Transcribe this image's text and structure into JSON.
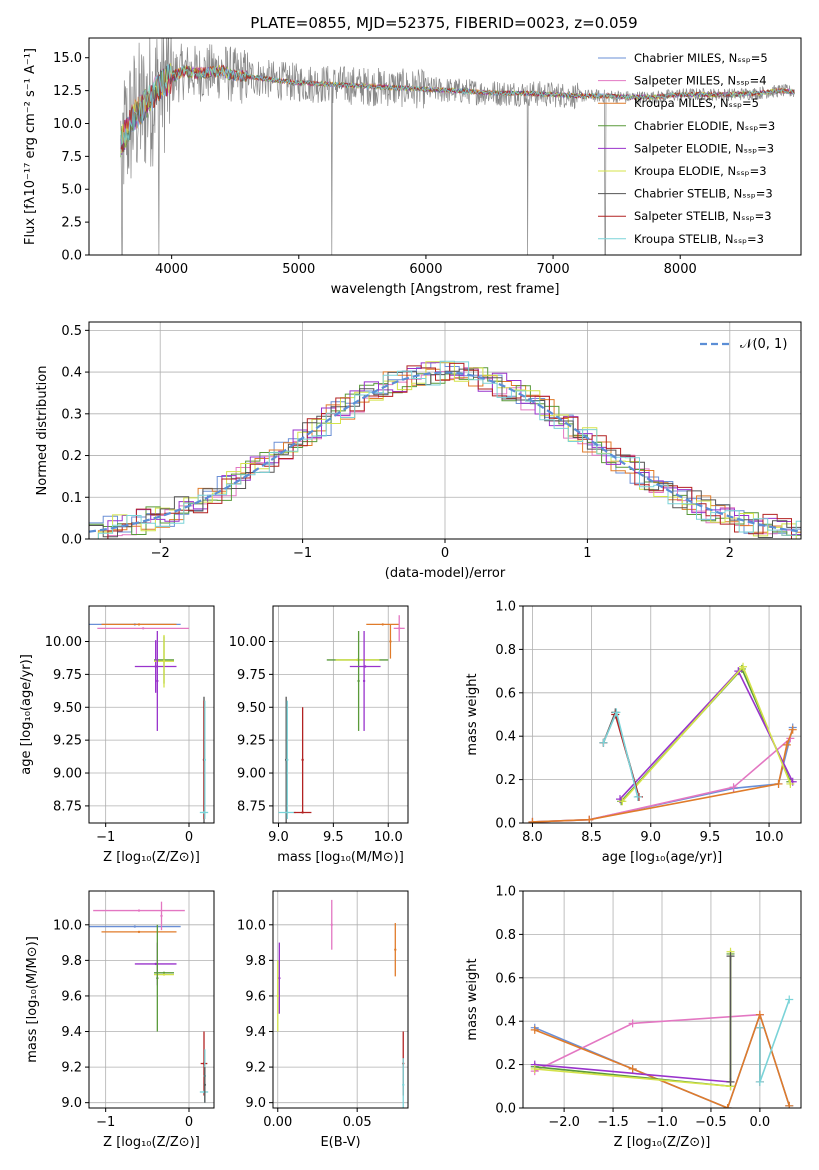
{
  "colors": {
    "chabrier_miles": "#6a8fd6",
    "salpeter_miles": "#e377c2",
    "kroupa_miles": "#e07b2a",
    "chabrier_elodie": "#5a9a3a",
    "salpeter_elodie": "#9933cc",
    "kroupa_elodie": "#d4e34a",
    "chabrier_stelib": "#555555",
    "salpeter_stelib": "#b22222",
    "kroupa_stelib": "#7ad3d8",
    "data_spectrum": "#888888",
    "normal_curve": "#5b8ed6",
    "grid": "#b0b0b0"
  },
  "chart_data": [
    {
      "id": "spectrum",
      "type": "line",
      "title": "PLATE=0855, MJD=52375, FIBERID=0023, z=0.059",
      "xlabel": "wavelength [Angstrom, rest frame]",
      "ylabel": "Flux [fλ10⁻¹⁷ erg cm⁻² s⁻¹ A⁻¹]",
      "xlim": [
        3350,
        8950
      ],
      "ylim": [
        0,
        16.5
      ],
      "xticks": [
        4000,
        5000,
        6000,
        7000,
        8000
      ],
      "yticks": [
        "0.0",
        "2.5",
        "5.0",
        "7.5",
        "10.0",
        "12.5",
        "15.0"
      ],
      "ytick_values": [
        0,
        2.5,
        5,
        7.5,
        10,
        12.5,
        15
      ],
      "legend_position": "upper-right",
      "legend": [
        "Chabrier MILES, Nₛₛₚ=5",
        "Salpeter MILES, Nₛₛₚ=4",
        "Kroupa MILES, Nₛₛₚ=5",
        "Chabrier ELODIE, Nₛₛₚ=3",
        "Salpeter ELODIE, Nₛₛₚ=3",
        "Kroupa ELODIE, Nₛₛₚ=3",
        "Chabrier STELIB, Nₛₛₚ=3",
        "Salpeter STELIB, Nₛₛₚ=3",
        "Kroupa STELIB, Nₛₛₚ=3"
      ],
      "legend_colors": [
        "chabrier_miles",
        "salpeter_miles",
        "kroupa_miles",
        "chabrier_elodie",
        "salpeter_elodie",
        "kroupa_elodie",
        "chabrier_stelib",
        "salpeter_stelib",
        "kroupa_stelib"
      ],
      "model_curve": {
        "x": [
          3600,
          3700,
          3800,
          3900,
          4000,
          4100,
          4200,
          4300,
          4400,
          4500,
          4600,
          4800,
          5000,
          5200,
          5400,
          5600,
          5800,
          6000,
          6200,
          6400,
          6600,
          6800,
          7000,
          7200,
          7400,
          7600,
          7800,
          8000,
          8200,
          8400,
          8600,
          8800,
          8900
        ],
        "y": [
          8.5,
          10.5,
          11.5,
          12.8,
          13.5,
          14.0,
          13.8,
          13.9,
          14.0,
          13.6,
          13.6,
          13.3,
          13.1,
          13.0,
          12.9,
          12.8,
          12.7,
          12.6,
          12.5,
          12.4,
          12.3,
          12.3,
          12.2,
          12.1,
          12.1,
          12.0,
          12.0,
          12.2,
          12.2,
          12.2,
          12.3,
          12.5,
          12.4
        ]
      }
    },
    {
      "id": "residuals",
      "type": "histogram",
      "xlabel": "(data-model)/error",
      "ylabel": "Normed distribution",
      "xlim": [
        -2.5,
        2.5
      ],
      "ylim": [
        0,
        0.52
      ],
      "xticks": [
        "−2",
        "−1",
        "0",
        "1",
        "2"
      ],
      "xtick_values": [
        -2,
        -1,
        0,
        1,
        2
      ],
      "yticks": [
        "0.0",
        "0.1",
        "0.2",
        "0.3",
        "0.4",
        "0.5"
      ],
      "ytick_values": [
        0,
        0.1,
        0.2,
        0.3,
        0.4,
        0.5
      ],
      "legend": [
        "𝒩(0, 1)"
      ],
      "legend_position": "upper-right",
      "reference_curve": "normal(0,1)"
    },
    {
      "id": "age_vs_Z",
      "type": "errorbar",
      "xlabel": "Z [log₁₀(Z/Z⊙)]",
      "ylabel": "age  [log₁₀(age/yr)]",
      "xlim": [
        -1.2,
        0.3
      ],
      "ylim": [
        8.62,
        10.27
      ],
      "xticks": [
        "−1",
        "0"
      ],
      "xtick_values": [
        -1,
        0
      ],
      "yticks": [
        "8.75",
        "9.00",
        "9.25",
        "9.50",
        "9.75",
        "10.00"
      ],
      "ytick_values": [
        8.75,
        9.0,
        9.25,
        9.5,
        9.75,
        10.0
      ],
      "points": [
        {
          "c": "chabrier_miles",
          "x": -0.65,
          "xerr": 0.55,
          "y": 10.13,
          "yerr": 0.0
        },
        {
          "c": "salpeter_miles",
          "x": -0.55,
          "xerr": 0.55,
          "y": 10.1,
          "yerr": 0.0
        },
        {
          "c": "kroupa_miles",
          "x": -0.6,
          "xerr": 0.45,
          "y": 10.13,
          "yerr": 0.0
        },
        {
          "c": "chabrier_elodie",
          "x": -0.3,
          "xerr": 0.12,
          "y": 9.86,
          "yerr": 0.18
        },
        {
          "c": "salpeter_elodie",
          "x": -0.4,
          "xerr": 0.25,
          "y": 9.81,
          "yerr": 0.2
        },
        {
          "c": "kroupa_elodie",
          "x": -0.3,
          "xerr": 0.12,
          "y": 9.85,
          "yerr": 0.2
        },
        {
          "c": "salpeter_elodie",
          "x": -0.38,
          "xerr": 0.0,
          "y": 9.7,
          "yerr": 0.38
        },
        {
          "c": "chabrier_stelib",
          "x": 0.18,
          "xerr": 0.0,
          "y": 9.1,
          "yerr": 0.48
        },
        {
          "c": "salpeter_stelib",
          "x": 0.18,
          "xerr": 0.0,
          "y": 9.1,
          "yerr": 0.45
        },
        {
          "c": "kroupa_stelib",
          "x": 0.18,
          "xerr": 0.05,
          "y": 8.7,
          "yerr": 0.0
        },
        {
          "c": "kroupa_stelib",
          "x": 0.19,
          "xerr": 0.0,
          "y": 9.1,
          "yerr": 0.45
        }
      ]
    },
    {
      "id": "age_vs_mass",
      "type": "errorbar",
      "xlabel": "mass [log₁₀(M/M⊙)]",
      "xlim": [
        8.95,
        10.18
      ],
      "ylim": [
        8.62,
        10.27
      ],
      "xticks": [
        "9.0",
        "9.5",
        "10.0"
      ],
      "xtick_values": [
        9.0,
        9.5,
        10.0
      ],
      "yticks": [
        "8.75",
        "9.00",
        "9.25",
        "9.50",
        "9.75",
        "10.00"
      ],
      "ytick_values": [
        8.75,
        9.0,
        9.25,
        9.5,
        9.75,
        10.0
      ],
      "points": [
        {
          "c": "kroupa_miles",
          "x": 9.95,
          "xerr": 0.15,
          "y": 10.13,
          "yerr": 0.0
        },
        {
          "c": "salpeter_miles",
          "x": 10.1,
          "xerr": 0.05,
          "y": 10.1,
          "yerr": 0.1
        },
        {
          "c": "kroupa_miles",
          "x": 10.02,
          "xerr": 0.0,
          "y": 10.0,
          "yerr": 0.13
        },
        {
          "c": "chabrier_elodie",
          "x": 9.72,
          "xerr": 0.28,
          "y": 9.86,
          "yerr": 0.0
        },
        {
          "c": "kroupa_elodie",
          "x": 9.72,
          "xerr": 0.2,
          "y": 9.86,
          "yerr": 0.0
        },
        {
          "c": "chabrier_elodie",
          "x": 9.73,
          "xerr": 0.0,
          "y": 9.7,
          "yerr": 0.38
        },
        {
          "c": "salpeter_elodie",
          "x": 9.79,
          "xerr": 0.14,
          "y": 9.81,
          "yerr": 0.0
        },
        {
          "c": "salpeter_elodie",
          "x": 9.78,
          "xerr": 0.0,
          "y": 9.7,
          "yerr": 0.38
        },
        {
          "c": "chabrier_stelib",
          "x": 9.07,
          "xerr": 0.0,
          "y": 9.1,
          "yerr": 0.48
        },
        {
          "c": "kroupa_stelib",
          "x": 9.08,
          "xerr": 0.08,
          "y": 8.7,
          "yerr": 0.0
        },
        {
          "c": "kroupa_stelib",
          "x": 9.08,
          "xerr": 0.0,
          "y": 9.1,
          "yerr": 0.45
        },
        {
          "c": "salpeter_stelib",
          "x": 9.22,
          "xerr": 0.0,
          "y": 9.1,
          "yerr": 0.4
        },
        {
          "c": "salpeter_stelib",
          "x": 9.22,
          "xerr": 0.08,
          "y": 8.7,
          "yerr": 0.0
        }
      ]
    },
    {
      "id": "weight_vs_age",
      "type": "line",
      "xlabel": "age  [log₁₀(age/yr)]",
      "ylabel": "mass weight",
      "xlim": [
        7.92,
        10.27
      ],
      "ylim": [
        0,
        1.0
      ],
      "xticks": [
        "8.0",
        "8.5",
        "9.0",
        "9.5",
        "10.0"
      ],
      "xtick_values": [
        8.0,
        8.5,
        9.0,
        9.5,
        10.0
      ],
      "yticks": [
        "0.0",
        "0.2",
        "0.4",
        "0.6",
        "0.8",
        "1.0"
      ],
      "ytick_values": [
        0,
        0.2,
        0.4,
        0.6,
        0.8,
        1.0
      ],
      "series": [
        {
          "c": "chabrier_miles",
          "x": [
            8.0,
            8.48,
            9.7,
            10.08,
            10.2
          ],
          "y": [
            0.005,
            0.015,
            0.16,
            0.18,
            0.44
          ]
        },
        {
          "c": "salpeter_miles",
          "x": [
            8.0,
            8.48,
            9.7,
            10.18
          ],
          "y": [
            0.005,
            0.015,
            0.165,
            0.39
          ]
        },
        {
          "c": "kroupa_miles",
          "x": [
            8.0,
            8.48,
            10.08,
            10.15,
            10.2
          ],
          "y": [
            0.005,
            0.015,
            0.18,
            0.36,
            0.43
          ]
        },
        {
          "c": "chabrier_elodie",
          "x": [
            8.75,
            9.77,
            10.18
          ],
          "y": [
            0.1,
            0.71,
            0.19
          ]
        },
        {
          "c": "salpeter_elodie",
          "x": [
            8.74,
            9.74,
            10.2
          ],
          "y": [
            0.11,
            0.7,
            0.19
          ]
        },
        {
          "c": "kroupa_elodie",
          "x": [
            8.76,
            9.78,
            10.18
          ],
          "y": [
            0.1,
            0.72,
            0.18
          ]
        },
        {
          "c": "chabrier_stelib",
          "x": [
            8.6,
            8.7,
            8.9
          ],
          "y": [
            0.37,
            0.51,
            0.12
          ]
        },
        {
          "c": "salpeter_stelib",
          "x": [
            8.6,
            8.7,
            8.9
          ],
          "y": [
            0.37,
            0.5,
            0.12
          ]
        },
        {
          "c": "kroupa_stelib",
          "x": [
            8.6,
            8.71,
            8.89
          ],
          "y": [
            0.37,
            0.51,
            0.12
          ]
        }
      ]
    },
    {
      "id": "mass_vs_Z",
      "type": "errorbar",
      "xlabel": "Z [log₁₀(Z/Z⊙)]",
      "ylabel": "mass [log₁₀(M/M⊙)]",
      "xlim": [
        -1.2,
        0.3
      ],
      "ylim": [
        8.97,
        10.19
      ],
      "xticks": [
        "−1",
        "0"
      ],
      "xtick_values": [
        -1,
        0
      ],
      "yticks": [
        "9.0",
        "9.2",
        "9.4",
        "9.6",
        "9.8",
        "10.0"
      ],
      "ytick_values": [
        9.0,
        9.2,
        9.4,
        9.6,
        9.8,
        10.0
      ],
      "points": [
        {
          "c": "salpeter_miles",
          "x": -0.6,
          "xerr": 0.55,
          "y": 10.08,
          "yerr": 0.0
        },
        {
          "c": "chabrier_miles",
          "x": -0.65,
          "xerr": 0.55,
          "y": 9.99,
          "yerr": 0.0
        },
        {
          "c": "kroupa_miles",
          "x": -0.6,
          "xerr": 0.45,
          "y": 9.96,
          "yerr": 0.0
        },
        {
          "c": "salpeter_miles",
          "x": -0.33,
          "xerr": 0.0,
          "y": 10.05,
          "yerr": 0.08
        },
        {
          "c": "salpeter_elodie",
          "x": -0.4,
          "xerr": 0.25,
          "y": 9.78,
          "yerr": 0.0
        },
        {
          "c": "salpeter_elodie",
          "x": -0.38,
          "xerr": 0.0,
          "y": 9.78,
          "yerr": 0.12
        },
        {
          "c": "chabrier_elodie",
          "x": -0.3,
          "xerr": 0.12,
          "y": 9.73,
          "yerr": 0.0
        },
        {
          "c": "kroupa_elodie",
          "x": -0.3,
          "xerr": 0.12,
          "y": 9.72,
          "yerr": 0.0
        },
        {
          "c": "chabrier_elodie",
          "x": -0.38,
          "xerr": 0.0,
          "y": 9.7,
          "yerr": 0.3
        },
        {
          "c": "salpeter_stelib",
          "x": 0.18,
          "xerr": 0.04,
          "y": 9.22,
          "yerr": 0.18
        },
        {
          "c": "kroupa_stelib",
          "x": 0.18,
          "xerr": 0.05,
          "y": 9.06,
          "yerr": 0.0
        },
        {
          "c": "kroupa_stelib",
          "x": 0.19,
          "xerr": 0.0,
          "y": 9.15,
          "yerr": 0.15
        },
        {
          "c": "chabrier_stelib",
          "x": 0.19,
          "xerr": 0.0,
          "y": 9.1,
          "yerr": 0.1
        }
      ]
    },
    {
      "id": "mass_vs_ebv",
      "type": "errorbar",
      "xlabel": "E(B-V)",
      "xlim": [
        -0.003,
        0.082
      ],
      "ylim": [
        8.97,
        10.19
      ],
      "xticks": [
        "0.00",
        "0.05"
      ],
      "xtick_values": [
        0.0,
        0.05
      ],
      "yticks": [
        "9.0",
        "9.2",
        "9.4",
        "9.6",
        "9.8",
        "10.0"
      ],
      "ytick_values": [
        9.0,
        9.2,
        9.4,
        9.6,
        9.8,
        10.0
      ],
      "points": [
        {
          "c": "salpeter_miles",
          "x": 0.034,
          "xerr": 0.0,
          "y": 10.0,
          "yerr": 0.14
        },
        {
          "c": "kroupa_miles",
          "x": 0.074,
          "xerr": 0.0,
          "y": 9.86,
          "yerr": 0.15
        },
        {
          "c": "salpeter_stelib",
          "x": 0.079,
          "xerr": 0.0,
          "y": 9.22,
          "yerr": 0.18
        },
        {
          "c": "kroupa_stelib",
          "x": 0.079,
          "xerr": 0.0,
          "y": 9.1,
          "yerr": 0.15
        },
        {
          "c": "salpeter_elodie",
          "x": 0.001,
          "xerr": 0.0,
          "y": 9.7,
          "yerr": 0.2
        },
        {
          "c": "kroupa_elodie",
          "x": 0.0,
          "xerr": 0.0,
          "y": 9.6,
          "yerr": 0.2
        }
      ]
    },
    {
      "id": "weight_vs_Z",
      "type": "line",
      "xlabel": "Z [log₁₀(Z/Z⊙)]",
      "ylabel": "mass weight",
      "xlim": [
        -2.42,
        0.42
      ],
      "ylim": [
        0,
        1.0
      ],
      "xticks": [
        "−2.0",
        "−1.5",
        "−1.0",
        "−0.5",
        "0.0"
      ],
      "xtick_values": [
        -2.0,
        -1.5,
        -1.0,
        -0.5,
        0.0
      ],
      "yticks": [
        "0.0",
        "0.2",
        "0.4",
        "0.6",
        "0.8",
        "1.0"
      ],
      "ytick_values": [
        0,
        0.2,
        0.4,
        0.6,
        0.8,
        1.0
      ],
      "series": [
        {
          "c": "chabrier_miles",
          "x": [
            -2.3,
            -1.3,
            -0.33,
            0.0,
            0.3
          ],
          "y": [
            0.37,
            0.18,
            0.0,
            0.43,
            0.01
          ]
        },
        {
          "c": "salpeter_miles",
          "x": [
            -2.3,
            -1.3,
            0.0
          ],
          "y": [
            0.17,
            0.39,
            0.43
          ]
        },
        {
          "c": "kroupa_miles",
          "x": [
            -2.3,
            -1.3,
            -0.33,
            0.0,
            0.3
          ],
          "y": [
            0.36,
            0.18,
            0.0,
            0.43,
            0.01
          ]
        },
        {
          "c": "chabrier_elodie",
          "x": [
            -2.3,
            -0.3,
            -0.3
          ],
          "y": [
            0.19,
            0.1,
            0.71
          ]
        },
        {
          "c": "salpeter_elodie",
          "x": [
            -2.3,
            -0.3
          ],
          "y": [
            0.2,
            0.12
          ]
        },
        {
          "c": "kroupa_elodie",
          "x": [
            -2.3,
            -0.3,
            -0.3
          ],
          "y": [
            0.18,
            0.1,
            0.72
          ]
        },
        {
          "c": "chabrier_stelib",
          "x": [
            -0.3,
            -0.3
          ],
          "y": [
            0.12,
            0.7
          ]
        },
        {
          "c": "salpeter_stelib",
          "x": [
            0.0,
            0.0
          ],
          "y": [
            0.12,
            0.37
          ]
        },
        {
          "c": "kroupa_stelib",
          "x": [
            0.0,
            0.0,
            0.3
          ],
          "y": [
            0.37,
            0.12,
            0.5
          ]
        }
      ]
    }
  ]
}
